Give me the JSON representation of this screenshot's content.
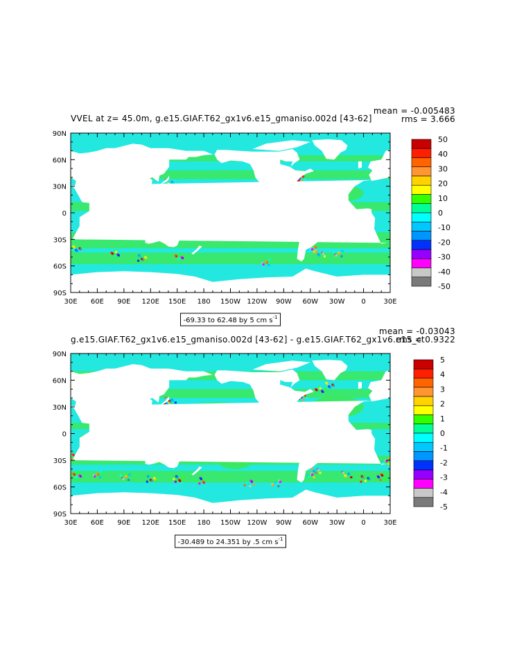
{
  "chart_data": [
    {
      "type": "heatmap",
      "title": "VVEL at z=  45.0m, g.e15.GIAF.T62_gx1v6.e15_gmaniso.002d [43-62]",
      "mean_text": "mean = -0.005483",
      "rms_text": "rms = 3.666",
      "range_text": "-69.33 to 62.48 by 5 cm s",
      "range_sup": "-1",
      "x_ticks": [
        "30E",
        "60E",
        "90E",
        "120E",
        "150E",
        "180",
        "150W",
        "120W",
        "90W",
        "60W",
        "30W",
        "0",
        "30E"
      ],
      "y_ticks": [
        "90N",
        "60N",
        "30N",
        "0",
        "30S",
        "60S",
        "90S"
      ],
      "xlim": [
        30,
        390
      ],
      "ylim": [
        -90,
        90
      ],
      "colorbar_labels": [
        "50",
        "40",
        "30",
        "20",
        "10",
        "0",
        "-10",
        "-20",
        "-30",
        "-40",
        "-50"
      ],
      "colorbar_colors": [
        "#c80000",
        "#ff1e00",
        "#ff6400",
        "#ff9632",
        "#ffd200",
        "#ffff00",
        "#32ff00",
        "#00ff96",
        "#00ffff",
        "#00c8ff",
        "#0096ff",
        "#0032ff",
        "#9600ff",
        "#ff00ff",
        "#c8c8c8",
        "#7a7a7a"
      ]
    },
    {
      "type": "heatmap",
      "title": "g.e15.GIAF.T62_gx1v6.e15_gmaniso.002d [43-62] - g.e15.GIAF.T62_gx1v6.e15_ct",
      "mean_text": "mean = -0.03043",
      "rms_text": "rms = 0.9322",
      "range_text": "-30.489 to 24.351 by .5 cm s",
      "range_sup": "-1",
      "x_ticks": [
        "30E",
        "60E",
        "90E",
        "120E",
        "150E",
        "180",
        "150W",
        "120W",
        "90W",
        "60W",
        "30W",
        "0",
        "30E"
      ],
      "y_ticks": [
        "90N",
        "60N",
        "30N",
        "0",
        "30S",
        "60S",
        "90S"
      ],
      "xlim": [
        30,
        390
      ],
      "ylim": [
        -90,
        90
      ],
      "colorbar_labels": [
        "5",
        "4",
        "3",
        "2",
        "1",
        "0",
        "-1",
        "-2",
        "-3",
        "-4",
        "-5"
      ],
      "colorbar_colors": [
        "#c80000",
        "#ff1e00",
        "#ff6400",
        "#ff9632",
        "#ffd200",
        "#ffff00",
        "#32ff00",
        "#00ff96",
        "#00ffff",
        "#00c8ff",
        "#0096ff",
        "#0032ff",
        "#9600ff",
        "#ff00ff",
        "#c8c8c8",
        "#7a7a7a"
      ]
    }
  ],
  "map_colors": {
    "ocean_base": "#22e8e0",
    "ocean_green": "#3ce85a",
    "land": "#ffffff"
  }
}
